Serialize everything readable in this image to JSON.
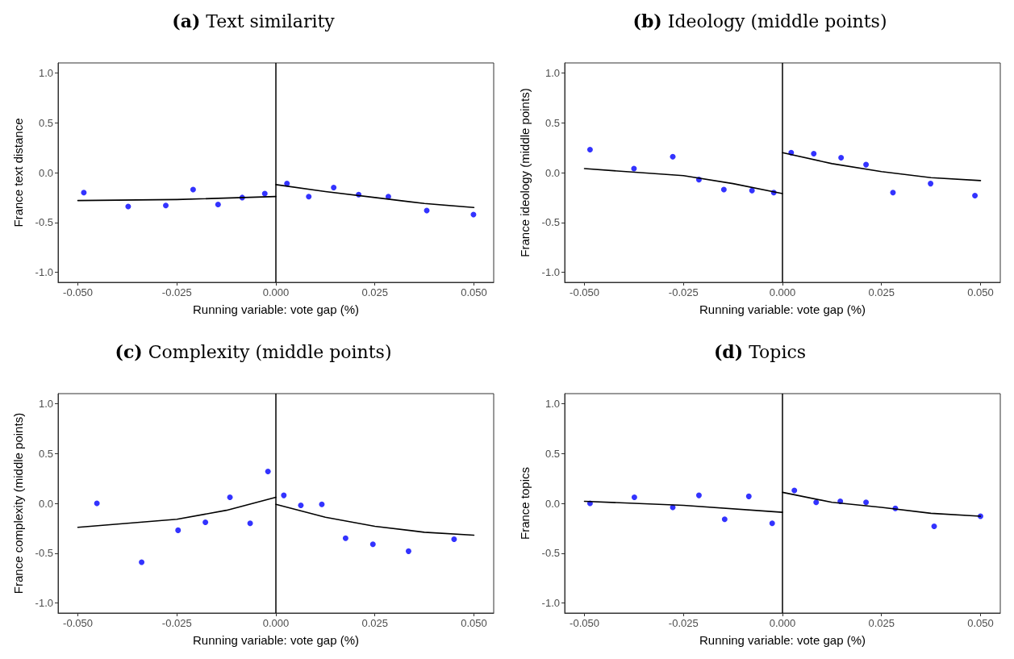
{
  "chart_data": [
    {
      "type": "scatter",
      "title": "(a) Text similarity",
      "xlabel": "Running variable: vote gap (%)",
      "ylabel": "France text distance",
      "xlim": [
        -0.055,
        0.055
      ],
      "ylim": [
        -1.1,
        1.1
      ],
      "xticks": [
        {
          "value": -0.05,
          "label": "-0.050"
        },
        {
          "value": -0.025,
          "label": "-0.025"
        },
        {
          "value": 0,
          "label": "0.000"
        },
        {
          "value": 0.025,
          "label": "0.025"
        },
        {
          "value": 0.05,
          "label": "0.050"
        }
      ],
      "yticks": [
        {
          "value": -1,
          "label": "-1.0"
        },
        {
          "value": -0.5,
          "label": "-0.5"
        },
        {
          "value": 0,
          "label": "0.0"
        },
        {
          "value": 0.5,
          "label": "0.5"
        },
        {
          "value": 1,
          "label": "1.0"
        }
      ],
      "grid": false,
      "ref_lines": [
        {
          "axis": "x",
          "value": 0,
          "color": "#000000"
        }
      ],
      "series": [
        {
          "type": "scatter",
          "color": "#0000ff",
          "marker": "circle",
          "x": [
            -0.0485,
            -0.0373,
            -0.0278,
            -0.0209,
            -0.0146,
            -0.0085,
            -0.0028,
            0.0028,
            0.0083,
            0.0146,
            0.0209,
            0.0284,
            0.0381,
            0.0499
          ],
          "values": [
            -0.2,
            -0.34,
            -0.33,
            -0.17,
            -0.32,
            -0.25,
            -0.21,
            -0.11,
            -0.24,
            -0.15,
            -0.22,
            -0.24,
            -0.38,
            -0.42
          ]
        },
        {
          "type": "line",
          "color": "#000000",
          "marker": "none",
          "line_style": "solid",
          "x": [
            -0.05,
            -0.025,
            0
          ],
          "values": [
            -0.28,
            -0.27,
            -0.24
          ]
        },
        {
          "type": "line",
          "color": "#000000",
          "marker": "none",
          "line_style": "solid",
          "x": [
            0,
            0.0125,
            0.025,
            0.0375,
            0.05
          ],
          "values": [
            -0.12,
            -0.19,
            -0.25,
            -0.31,
            -0.35
          ]
        }
      ]
    },
    {
      "type": "scatter",
      "title": "(b) Ideology (middle points)",
      "xlabel": "Running variable: vote gap (%)",
      "ylabel": "France ideology (middle points)",
      "xlim": [
        -0.055,
        0.055
      ],
      "ylim": [
        -1.1,
        1.1
      ],
      "xticks": [
        {
          "value": -0.05,
          "label": "-0.050"
        },
        {
          "value": -0.025,
          "label": "-0.025"
        },
        {
          "value": 0,
          "label": "0.000"
        },
        {
          "value": 0.025,
          "label": "0.025"
        },
        {
          "value": 0.05,
          "label": "0.050"
        }
      ],
      "yticks": [
        {
          "value": -1,
          "label": "-1.0"
        },
        {
          "value": -0.5,
          "label": "-0.5"
        },
        {
          "value": 0,
          "label": "0.0"
        },
        {
          "value": 0.5,
          "label": "0.5"
        },
        {
          "value": 1,
          "label": "1.0"
        }
      ],
      "grid": false,
      "ref_lines": [
        {
          "axis": "x",
          "value": 0,
          "color": "#000000"
        }
      ],
      "series": [
        {
          "type": "scatter",
          "color": "#0000ff",
          "marker": "circle",
          "x": [
            -0.0486,
            -0.0375,
            -0.0277,
            -0.0211,
            -0.0148,
            -0.0077,
            -0.0022,
            0.0022,
            0.0079,
            0.0148,
            0.0211,
            0.0279,
            0.0374,
            0.0486
          ],
          "values": [
            0.23,
            0.04,
            0.16,
            -0.07,
            -0.17,
            -0.18,
            -0.2,
            0.2,
            0.19,
            0.15,
            0.08,
            -0.2,
            -0.11,
            -0.23
          ]
        },
        {
          "type": "line",
          "color": "#000000",
          "marker": "none",
          "line_style": "solid",
          "x": [
            -0.05,
            -0.025,
            -0.0125,
            0
          ],
          "values": [
            0.04,
            -0.03,
            -0.11,
            -0.21
          ]
        },
        {
          "type": "line",
          "color": "#000000",
          "marker": "none",
          "line_style": "solid",
          "x": [
            0,
            0.0125,
            0.025,
            0.0375,
            0.05
          ],
          "values": [
            0.2,
            0.09,
            0.01,
            -0.05,
            -0.08
          ]
        }
      ]
    },
    {
      "type": "scatter",
      "title": "(c) Complexity (middle points)",
      "xlabel": "Running variable: vote gap (%)",
      "ylabel": "France complexity (middle points)",
      "xlim": [
        -0.055,
        0.055
      ],
      "ylim": [
        -1.1,
        1.1
      ],
      "xticks": [
        {
          "value": -0.05,
          "label": "-0.050"
        },
        {
          "value": -0.025,
          "label": "-0.025"
        },
        {
          "value": 0,
          "label": "0.000"
        },
        {
          "value": 0.025,
          "label": "0.025"
        },
        {
          "value": 0.05,
          "label": "0.050"
        }
      ],
      "yticks": [
        {
          "value": -1,
          "label": "-1.0"
        },
        {
          "value": -0.5,
          "label": "-0.5"
        },
        {
          "value": 0,
          "label": "0.0"
        },
        {
          "value": 0.5,
          "label": "0.5"
        },
        {
          "value": 1,
          "label": "1.0"
        }
      ],
      "grid": false,
      "ref_lines": [
        {
          "axis": "x",
          "value": 0,
          "color": "#000000"
        }
      ],
      "series": [
        {
          "type": "scatter",
          "color": "#0000ff",
          "marker": "circle",
          "x": [
            -0.0452,
            -0.0339,
            -0.0247,
            -0.0178,
            -0.0116,
            -0.0065,
            -0.002,
            0.002,
            0.0063,
            0.0116,
            0.0176,
            0.0245,
            0.0335,
            0.045
          ],
          "values": [
            0.0,
            -0.59,
            -0.27,
            -0.19,
            0.06,
            -0.2,
            0.32,
            0.08,
            -0.02,
            -0.01,
            -0.35,
            -0.41,
            -0.48,
            -0.36
          ]
        },
        {
          "type": "line",
          "color": "#000000",
          "marker": "none",
          "line_style": "solid",
          "x": [
            -0.05,
            -0.025,
            -0.0125,
            0
          ],
          "values": [
            -0.24,
            -0.16,
            -0.07,
            0.06
          ]
        },
        {
          "type": "line",
          "color": "#000000",
          "marker": "none",
          "line_style": "solid",
          "x": [
            0,
            0.0125,
            0.025,
            0.0375,
            0.05
          ],
          "values": [
            -0.01,
            -0.14,
            -0.23,
            -0.29,
            -0.32
          ]
        }
      ]
    },
    {
      "type": "scatter",
      "title": "(d) Topics",
      "xlabel": "Running variable: vote gap (%)",
      "ylabel": "France topics",
      "xlim": [
        -0.055,
        0.055
      ],
      "ylim": [
        -1.1,
        1.1
      ],
      "xticks": [
        {
          "value": -0.05,
          "label": "-0.050"
        },
        {
          "value": -0.025,
          "label": "-0.025"
        },
        {
          "value": 0,
          "label": "0.000"
        },
        {
          "value": 0.025,
          "label": "0.025"
        },
        {
          "value": 0.05,
          "label": "0.050"
        }
      ],
      "yticks": [
        {
          "value": -1,
          "label": "-1.0"
        },
        {
          "value": -0.5,
          "label": "-0.5"
        },
        {
          "value": 0,
          "label": "0.0"
        },
        {
          "value": 0.5,
          "label": "0.5"
        },
        {
          "value": 1,
          "label": "1.0"
        }
      ],
      "grid": false,
      "ref_lines": [
        {
          "axis": "x",
          "value": 0,
          "color": "#000000"
        }
      ],
      "series": [
        {
          "type": "scatter",
          "color": "#0000ff",
          "marker": "circle",
          "x": [
            -0.0486,
            -0.0374,
            -0.0277,
            -0.0211,
            -0.0146,
            -0.0085,
            -0.0026,
            0.003,
            0.0085,
            0.0146,
            0.0211,
            0.0285,
            0.0383,
            0.05
          ],
          "values": [
            0.0,
            0.06,
            -0.04,
            0.08,
            -0.16,
            0.07,
            -0.2,
            0.13,
            0.01,
            0.02,
            0.01,
            -0.05,
            -0.23,
            -0.13
          ]
        },
        {
          "type": "line",
          "color": "#000000",
          "marker": "none",
          "line_style": "solid",
          "x": [
            -0.05,
            -0.025,
            0
          ],
          "values": [
            0.02,
            -0.02,
            -0.09
          ]
        },
        {
          "type": "line",
          "color": "#000000",
          "marker": "none",
          "line_style": "solid",
          "x": [
            0,
            0.0125,
            0.025,
            0.0375,
            0.05
          ],
          "values": [
            0.11,
            0.01,
            -0.04,
            -0.1,
            -0.13
          ]
        }
      ]
    }
  ]
}
